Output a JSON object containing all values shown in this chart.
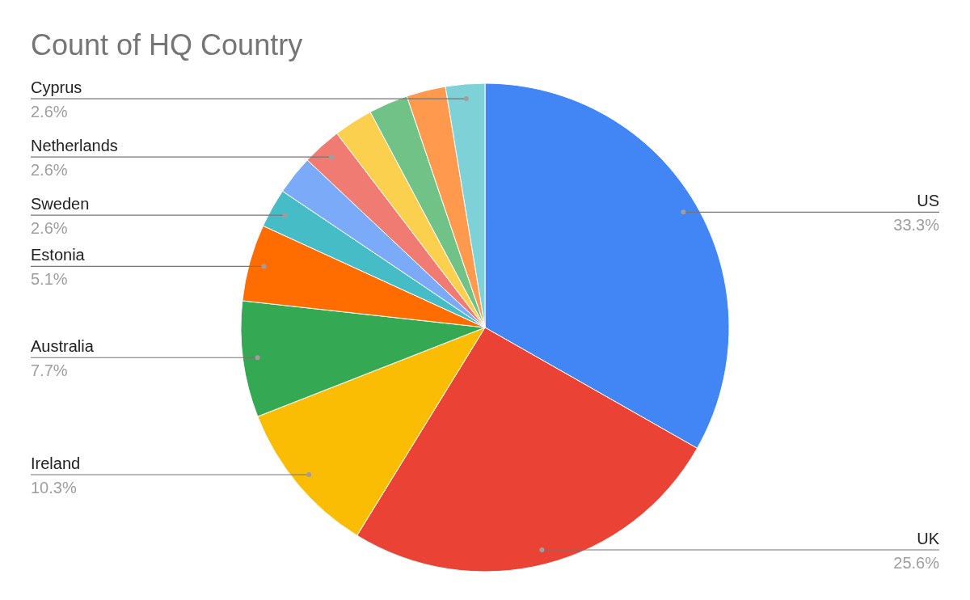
{
  "chart_data": {
    "type": "pie",
    "title": "Count of HQ Country",
    "categories": [
      "US",
      "UK",
      "Ireland",
      "Australia",
      "Estonia",
      "Sweden",
      null,
      "Netherlands",
      null,
      null,
      null,
      "Cyprus"
    ],
    "values": [
      33.3,
      25.6,
      10.3,
      7.7,
      5.1,
      2.6,
      2.6,
      2.6,
      2.6,
      2.6,
      2.6,
      2.6
    ],
    "colors": [
      "#4285f4",
      "#ea4335",
      "#fbbc04",
      "#34a853",
      "#ff6d01",
      "#46bdc6",
      "#7baaf8",
      "#f07b72",
      "#fcd04f",
      "#71c287",
      "#ff994d",
      "#7ed1d7"
    ],
    "value_labels": [
      "33.3%",
      "25.6%",
      "10.3%",
      "7.7%",
      "5.1%",
      "2.6%",
      null,
      "2.6%",
      null,
      null,
      null,
      "2.6%"
    ],
    "legend": false
  }
}
